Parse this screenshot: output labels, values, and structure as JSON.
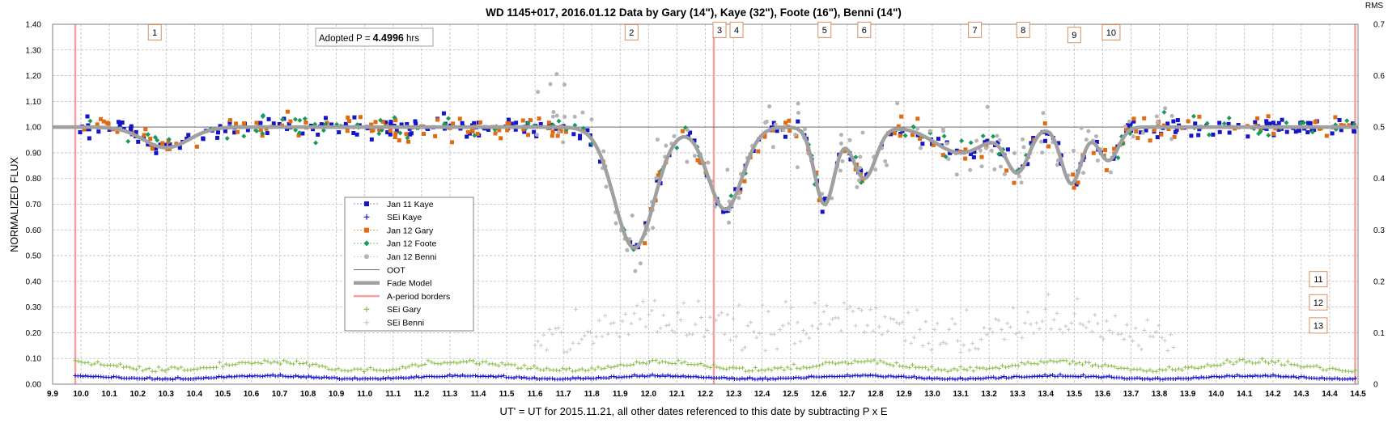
{
  "chart_data": {
    "type": "scatter",
    "title": "WD 1145+017, 2016.01.12 Data by Gary (14\"), Kaye (32\"), Foote (16\"), Benni (14\")",
    "xlabel": "UT' = UT for 2015.11.21, all other dates referenced to this date by subtracting P x E",
    "ylabel": "NORMALIZED FLUX",
    "y2label": "RMS",
    "xlim": [
      9.9,
      14.5
    ],
    "ylim": [
      0.0,
      1.4
    ],
    "y2lim": [
      0.0,
      0.7
    ],
    "grid": true,
    "legend_position": "center-left",
    "xticks": [
      "9.9",
      "10.0",
      "10.1",
      "10.2",
      "10.3",
      "10.4",
      "10.5",
      "10.6",
      "10.7",
      "10.8",
      "10.9",
      "11.0",
      "11.1",
      "11.2",
      "11.3",
      "11.4",
      "11.5",
      "11.6",
      "11.7",
      "11.8",
      "11.9",
      "12.0",
      "12.1",
      "12.2",
      "12.3",
      "12.4",
      "12.5",
      "12.6",
      "12.7",
      "12.8",
      "12.9",
      "13.0",
      "13.1",
      "13.2",
      "13.3",
      "13.4",
      "13.5",
      "13.6",
      "13.7",
      "13.8",
      "13.9",
      "14.0",
      "14.1",
      "14.2",
      "14.3",
      "14.4",
      "14.5"
    ],
    "yticks": [
      "0.00",
      "0.10",
      "0.20",
      "0.30",
      "0.40",
      "0.50",
      "0.60",
      "0.70",
      "0.80",
      "0.90",
      "1.00",
      "1.10",
      "1.20",
      "1.30",
      "1.40"
    ],
    "y2ticks": [
      "0",
      "0.1",
      "0.2",
      "0.3",
      "0.4",
      "0.5",
      "0.6",
      "0.7"
    ],
    "legend": [
      {
        "label": "Jan 11 Kaye",
        "color": "#1515c8",
        "marker": "square"
      },
      {
        "label": "SEi Kaye",
        "color": "#1515c8",
        "marker": "plus"
      },
      {
        "label": "Jan 12 Gary",
        "color": "#e06b12",
        "marker": "square"
      },
      {
        "label": "Jan 12 Foote",
        "color": "#1a9a5a",
        "marker": "diamond"
      },
      {
        "label": "Jan 12 Benni",
        "color": "#b4b4b4",
        "marker": "circle"
      },
      {
        "label": "OOT",
        "color": "#6e6e6e",
        "marker": "thin-line"
      },
      {
        "label": "Fade Model",
        "color": "#a0a0a0",
        "marker": "thick-line"
      },
      {
        "label": "A-period borders",
        "color": "#f2a0a0",
        "marker": "line"
      },
      {
        "label": "SEi Gary",
        "color": "#8cbf4e",
        "marker": "plus"
      },
      {
        "label": "SEi Benni",
        "color": "#c8c8c8",
        "marker": "plus"
      }
    ],
    "annotation": {
      "prefix": "Adopted P = ",
      "value": "4.4996",
      "suffix": " hrs"
    },
    "a_period_borders": [
      9.98,
      12.23,
      14.49
    ],
    "oot_level": 1.0,
    "dip_labels": [
      {
        "label": "1",
        "x": 10.26,
        "y": 1.37
      },
      {
        "label": "2",
        "x": 11.94,
        "y": 1.37
      },
      {
        "label": "3",
        "x": 12.25,
        "y": 1.38
      },
      {
        "label": "4",
        "x": 12.31,
        "y": 1.38
      },
      {
        "label": "5",
        "x": 12.62,
        "y": 1.38
      },
      {
        "label": "6",
        "x": 12.76,
        "y": 1.38
      },
      {
        "label": "7",
        "x": 13.15,
        "y": 1.38
      },
      {
        "label": "8",
        "x": 13.32,
        "y": 1.38
      },
      {
        "label": "9",
        "x": 13.5,
        "y": 1.36
      },
      {
        "label": "10",
        "x": 13.63,
        "y": 1.37
      },
      {
        "label": "11",
        "x": 14.36,
        "y": 0.41
      },
      {
        "label": "12",
        "x": 14.36,
        "y": 0.32
      },
      {
        "label": "13",
        "x": 14.36,
        "y": 0.23
      }
    ],
    "fade_model": {
      "baseline": 1.0,
      "dips": [
        {
          "center": 10.3,
          "depth": 0.08,
          "width": 0.08
        },
        {
          "center": 11.95,
          "depth": 0.47,
          "width": 0.07
        },
        {
          "center": 12.27,
          "depth": 0.32,
          "width": 0.06
        },
        {
          "center": 12.62,
          "depth": 0.3,
          "width": 0.035
        },
        {
          "center": 12.76,
          "depth": 0.2,
          "width": 0.04
        },
        {
          "center": 13.1,
          "depth": 0.1,
          "width": 0.09
        },
        {
          "center": 13.3,
          "depth": 0.17,
          "width": 0.04
        },
        {
          "center": 13.49,
          "depth": 0.22,
          "width": 0.035
        },
        {
          "center": 13.62,
          "depth": 0.13,
          "width": 0.035
        }
      ]
    },
    "series": [
      {
        "name": "Jan 11 Kaye",
        "x_range": [
          9.98,
          14.49
        ],
        "n": 330,
        "noise": 0.035
      },
      {
        "name": "Jan 12 Gary",
        "x_range": [
          9.98,
          14.49
        ],
        "n": 200,
        "noise": 0.045
      },
      {
        "name": "Jan 12 Foote",
        "x_range": [
          9.98,
          14.49
        ],
        "n": 130,
        "noise": 0.045
      },
      {
        "name": "Jan 12 Benni",
        "x_range": [
          11.6,
          13.85
        ],
        "n": 150,
        "noise": 0.09
      },
      {
        "name": "SEi Kaye",
        "x_range": [
          9.98,
          14.49
        ],
        "n": 500,
        "level_rms": 0.012
      },
      {
        "name": "SEi Gary",
        "x_range": [
          9.98,
          14.49
        ],
        "n": 400,
        "level_rms": 0.032
      },
      {
        "name": "SEi Benni",
        "x_range": [
          11.6,
          13.85
        ],
        "n": 220,
        "level_rms": 0.08
      }
    ]
  }
}
